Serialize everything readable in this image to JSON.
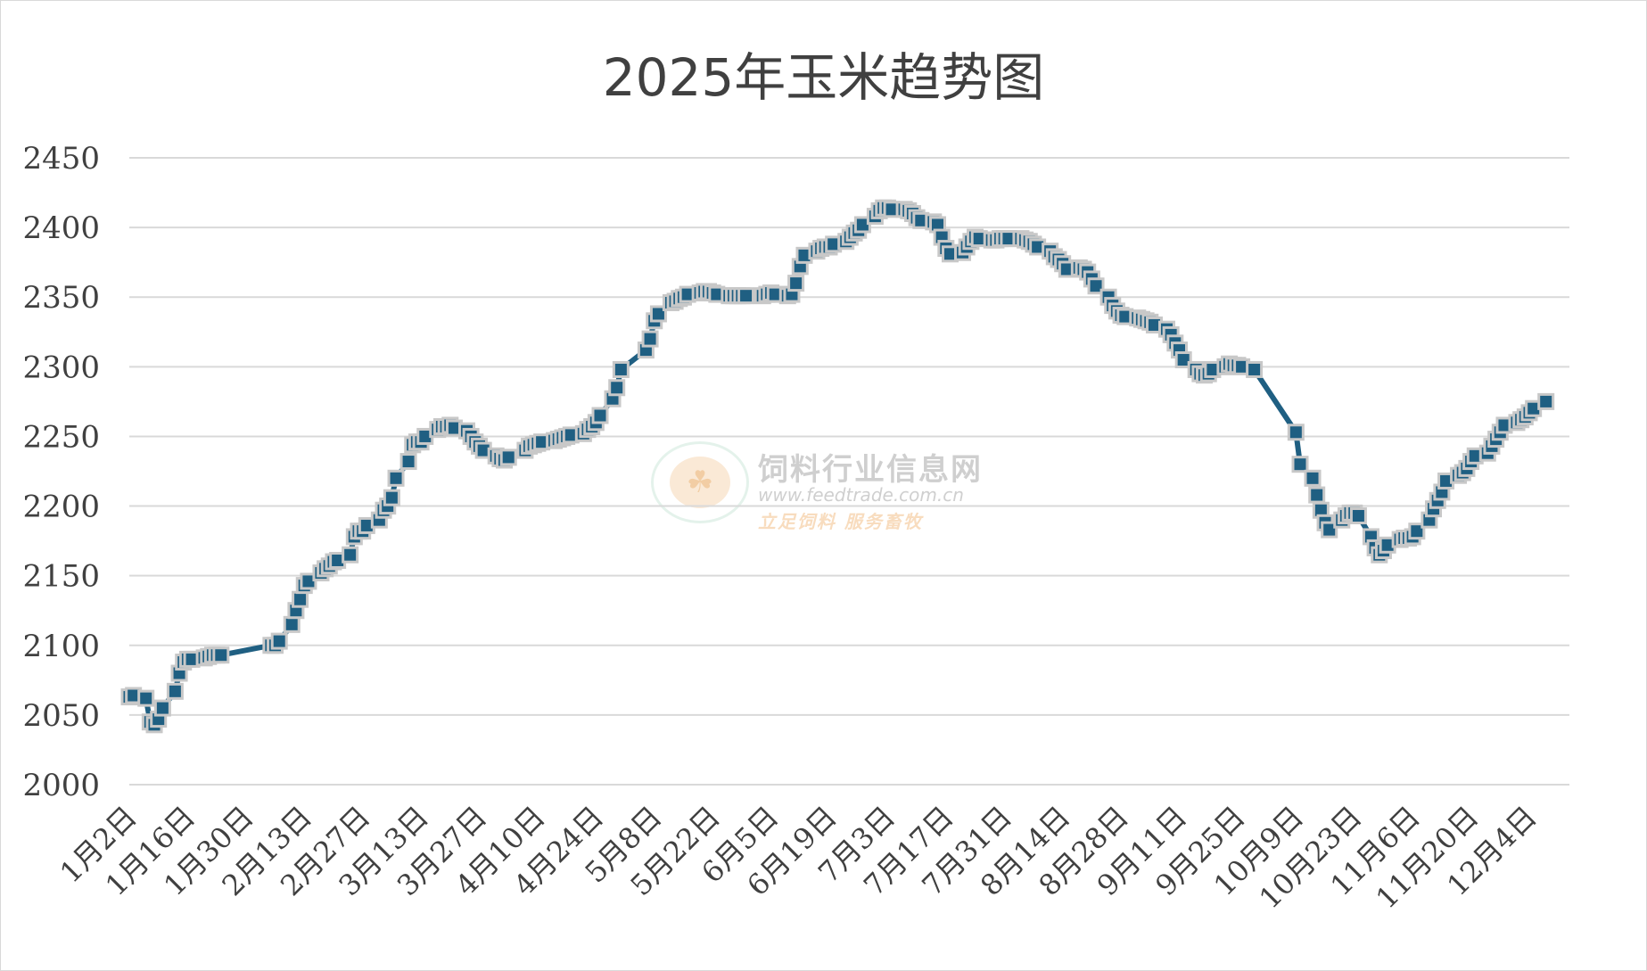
{
  "chart_data": {
    "type": "line",
    "title": "2025年玉米趋势图",
    "xlabel": "",
    "ylabel": "",
    "ylim": [
      2000,
      2450
    ],
    "y_ticks": [
      2000,
      2050,
      2100,
      2150,
      2200,
      2250,
      2300,
      2350,
      2400,
      2450
    ],
    "grid": true,
    "legend": "none",
    "marker": "square",
    "colors": {
      "line": "#1f5f82",
      "marker": "#1f5f82",
      "marker_edge": "#c8c8c8",
      "grid": "#d9d9d9",
      "tick_text": "#404040"
    },
    "x_tick_labels": [
      "1月2日",
      "1月16日",
      "1月30日",
      "2月13日",
      "2月27日",
      "3月13日",
      "3月27日",
      "4月10日",
      "4月24日",
      "5月8日",
      "5月22日",
      "6月5日",
      "6月19日",
      "7月3日",
      "7月17日",
      "7月31日",
      "8月14日",
      "8月28日",
      "9月11日",
      "9月25日",
      "10月9日",
      "10月23日",
      "11月6日",
      "11月20日",
      "12月4日"
    ],
    "series": [
      {
        "values": [
          {
            "x": "1月2日",
            "y": 2063
          },
          {
            "x": "1月3日",
            "y": 2064
          },
          {
            "x": "1月6日",
            "y": 2062
          },
          {
            "x": "1月7日",
            "y": 2045
          },
          {
            "x": "1月8日",
            "y": 2043
          },
          {
            "x": "1月9日",
            "y": 2047
          },
          {
            "x": "1月10日",
            "y": 2055
          },
          {
            "x": "1月13日",
            "y": 2067
          },
          {
            "x": "1月14日",
            "y": 2080
          },
          {
            "x": "1月15日",
            "y": 2088
          },
          {
            "x": "1月16日",
            "y": 2090
          },
          {
            "x": "1月17日",
            "y": 2090
          },
          {
            "x": "1月20日",
            "y": 2091
          },
          {
            "x": "1月21日",
            "y": 2092
          },
          {
            "x": "1月22日",
            "y": 2093
          },
          {
            "x": "1月23日",
            "y": 2093
          },
          {
            "x": "1月24日",
            "y": 2093
          },
          {
            "x": "2月5日",
            "y": 2100
          },
          {
            "x": "2月6日",
            "y": 2100
          },
          {
            "x": "2月7日",
            "y": 2103
          },
          {
            "x": "2月10日",
            "y": 2115
          },
          {
            "x": "2月11日",
            "y": 2125
          },
          {
            "x": "2月12日",
            "y": 2133
          },
          {
            "x": "2月13日",
            "y": 2143
          },
          {
            "x": "2月14日",
            "y": 2146
          },
          {
            "x": "2月17日",
            "y": 2152
          },
          {
            "x": "2月18日",
            "y": 2155
          },
          {
            "x": "2月19日",
            "y": 2157
          },
          {
            "x": "2月20日",
            "y": 2160
          },
          {
            "x": "2月21日",
            "y": 2161
          },
          {
            "x": "2月24日",
            "y": 2165
          },
          {
            "x": "2月25日",
            "y": 2178
          },
          {
            "x": "2月26日",
            "y": 2182
          },
          {
            "x": "2月27日",
            "y": 2182
          },
          {
            "x": "2月28日",
            "y": 2186
          },
          {
            "x": "3月3日",
            "y": 2190
          },
          {
            "x": "3月4日",
            "y": 2197
          },
          {
            "x": "3月5日",
            "y": 2200
          },
          {
            "x": "3月6日",
            "y": 2206
          },
          {
            "x": "3月7日",
            "y": 2220
          },
          {
            "x": "3月10日",
            "y": 2232
          },
          {
            "x": "3月11日",
            "y": 2244
          },
          {
            "x": "3月12日",
            "y": 2246
          },
          {
            "x": "3月13日",
            "y": 2246
          },
          {
            "x": "3月14日",
            "y": 2250
          },
          {
            "x": "3月17日",
            "y": 2255
          },
          {
            "x": "3月18日",
            "y": 2257
          },
          {
            "x": "3月19日",
            "y": 2257
          },
          {
            "x": "3月20日",
            "y": 2258
          },
          {
            "x": "3月21日",
            "y": 2256
          },
          {
            "x": "3月24日",
            "y": 2254
          },
          {
            "x": "3月25日",
            "y": 2250
          },
          {
            "x": "3月26日",
            "y": 2246
          },
          {
            "x": "3月27日",
            "y": 2243
          },
          {
            "x": "3月28日",
            "y": 2240
          },
          {
            "x": "3月31日",
            "y": 2236
          },
          {
            "x": "4月1日",
            "y": 2234
          },
          {
            "x": "4月2日",
            "y": 2233
          },
          {
            "x": "4月3日",
            "y": 2235
          },
          {
            "x": "4月7日",
            "y": 2240
          },
          {
            "x": "4月8日",
            "y": 2243
          },
          {
            "x": "4月9日",
            "y": 2244
          },
          {
            "x": "4月10日",
            "y": 2245
          },
          {
            "x": "4月11日",
            "y": 2246
          },
          {
            "x": "4月14日",
            "y": 2247
          },
          {
            "x": "4月15日",
            "y": 2248
          },
          {
            "x": "4月16日",
            "y": 2249
          },
          {
            "x": "4月17日",
            "y": 2250
          },
          {
            "x": "4月18日",
            "y": 2251
          },
          {
            "x": "4月21日",
            "y": 2252
          },
          {
            "x": "4月22日",
            "y": 2255
          },
          {
            "x": "4月23日",
            "y": 2257
          },
          {
            "x": "4月24日",
            "y": 2260
          },
          {
            "x": "4月25日",
            "y": 2265
          },
          {
            "x": "4月28日",
            "y": 2277
          },
          {
            "x": "4月29日",
            "y": 2285
          },
          {
            "x": "4月30日",
            "y": 2298
          },
          {
            "x": "5月6日",
            "y": 2312
          },
          {
            "x": "5月7日",
            "y": 2320
          },
          {
            "x": "5月8日",
            "y": 2333
          },
          {
            "x": "5月9日",
            "y": 2338
          },
          {
            "x": "5月12日",
            "y": 2346
          },
          {
            "x": "5月13日",
            "y": 2347
          },
          {
            "x": "5月14日",
            "y": 2349
          },
          {
            "x": "5月15日",
            "y": 2350
          },
          {
            "x": "5月16日",
            "y": 2352
          },
          {
            "x": "5月19日",
            "y": 2353
          },
          {
            "x": "5月20日",
            "y": 2354
          },
          {
            "x": "5月21日",
            "y": 2354
          },
          {
            "x": "5月22日",
            "y": 2353
          },
          {
            "x": "5月23日",
            "y": 2352
          },
          {
            "x": "5月26日",
            "y": 2351
          },
          {
            "x": "5月27日",
            "y": 2351
          },
          {
            "x": "5月28日",
            "y": 2351
          },
          {
            "x": "5月29日",
            "y": 2351
          },
          {
            "x": "5月30日",
            "y": 2351
          },
          {
            "x": "6月3日",
            "y": 2351
          },
          {
            "x": "6月4日",
            "y": 2352
          },
          {
            "x": "6月5日",
            "y": 2353
          },
          {
            "x": "6月6日",
            "y": 2352
          },
          {
            "x": "6月9日",
            "y": 2351
          },
          {
            "x": "6月10日",
            "y": 2352
          },
          {
            "x": "6月11日",
            "y": 2360
          },
          {
            "x": "6月12日",
            "y": 2372
          },
          {
            "x": "6月13日",
            "y": 2380
          },
          {
            "x": "6月16日",
            "y": 2383
          },
          {
            "x": "6月17日",
            "y": 2385
          },
          {
            "x": "6月18日",
            "y": 2386
          },
          {
            "x": "6月19日",
            "y": 2386
          },
          {
            "x": "6月20日",
            "y": 2388
          },
          {
            "x": "6月23日",
            "y": 2390
          },
          {
            "x": "6月24日",
            "y": 2393
          },
          {
            "x": "6月25日",
            "y": 2396
          },
          {
            "x": "6月26日",
            "y": 2398
          },
          {
            "x": "6月27日",
            "y": 2402
          },
          {
            "x": "6月30日",
            "y": 2408
          },
          {
            "x": "7月1日",
            "y": 2412
          },
          {
            "x": "7月2日",
            "y": 2414
          },
          {
            "x": "7月3日",
            "y": 2414
          },
          {
            "x": "7月4日",
            "y": 2413
          },
          {
            "x": "7月7日",
            "y": 2413
          },
          {
            "x": "7月8日",
            "y": 2412
          },
          {
            "x": "7月9日",
            "y": 2410
          },
          {
            "x": "7月10日",
            "y": 2407
          },
          {
            "x": "7月11日",
            "y": 2405
          },
          {
            "x": "7月14日",
            "y": 2404
          },
          {
            "x": "7月15日",
            "y": 2402
          },
          {
            "x": "7月16日",
            "y": 2393
          },
          {
            "x": "7月17日",
            "y": 2385
          },
          {
            "x": "7月18日",
            "y": 2381
          },
          {
            "x": "7月21日",
            "y": 2382
          },
          {
            "x": "7月22日",
            "y": 2386
          },
          {
            "x": "7月23日",
            "y": 2390
          },
          {
            "x": "7月24日",
            "y": 2393
          },
          {
            "x": "7月25日",
            "y": 2392
          },
          {
            "x": "7月28日",
            "y": 2391
          },
          {
            "x": "7月29日",
            "y": 2391
          },
          {
            "x": "7月30日",
            "y": 2392
          },
          {
            "x": "7月31日",
            "y": 2392
          },
          {
            "x": "8月1日",
            "y": 2392
          },
          {
            "x": "8月4日",
            "y": 2392
          },
          {
            "x": "8月5日",
            "y": 2391
          },
          {
            "x": "8月6日",
            "y": 2390
          },
          {
            "x": "8月7日",
            "y": 2388
          },
          {
            "x": "8月8日",
            "y": 2386
          },
          {
            "x": "8月11日",
            "y": 2383
          },
          {
            "x": "8月12日",
            "y": 2379
          },
          {
            "x": "8月13日",
            "y": 2377
          },
          {
            "x": "8月14日",
            "y": 2374
          },
          {
            "x": "8月15日",
            "y": 2370
          },
          {
            "x": "8月18日",
            "y": 2371
          },
          {
            "x": "8月19日",
            "y": 2370
          },
          {
            "x": "8月20日",
            "y": 2368
          },
          {
            "x": "8月21日",
            "y": 2363
          },
          {
            "x": "8月22日",
            "y": 2358
          },
          {
            "x": "8月25日",
            "y": 2350
          },
          {
            "x": "8月26日",
            "y": 2344
          },
          {
            "x": "8月27日",
            "y": 2340
          },
          {
            "x": "8月28日",
            "y": 2337
          },
          {
            "x": "8月29日",
            "y": 2336
          },
          {
            "x": "9月1日",
            "y": 2335
          },
          {
            "x": "9月2日",
            "y": 2334
          },
          {
            "x": "9月3日",
            "y": 2333
          },
          {
            "x": "9月4日",
            "y": 2332
          },
          {
            "x": "9月5日",
            "y": 2330
          },
          {
            "x": "9月8日",
            "y": 2327
          },
          {
            "x": "9月9日",
            "y": 2323
          },
          {
            "x": "9月10日",
            "y": 2317
          },
          {
            "x": "9月11日",
            "y": 2312
          },
          {
            "x": "9月12日",
            "y": 2305
          },
          {
            "x": "9月15日",
            "y": 2298
          },
          {
            "x": "9月16日",
            "y": 2295
          },
          {
            "x": "9月17日",
            "y": 2294
          },
          {
            "x": "9月18日",
            "y": 2295
          },
          {
            "x": "9月19日",
            "y": 2298
          },
          {
            "x": "9月22日",
            "y": 2300
          },
          {
            "x": "9月23日",
            "y": 2302
          },
          {
            "x": "9月24日",
            "y": 2301
          },
          {
            "x": "9月25日",
            "y": 2301
          },
          {
            "x": "9月26日",
            "y": 2300
          },
          {
            "x": "9月29日",
            "y": 2298
          },
          {
            "x": "10月9日",
            "y": 2253
          },
          {
            "x": "10月10日",
            "y": 2230
          },
          {
            "x": "10月13日",
            "y": 2220
          },
          {
            "x": "10月14日",
            "y": 2208
          },
          {
            "x": "10月15日",
            "y": 2197
          },
          {
            "x": "10月16日",
            "y": 2188
          },
          {
            "x": "10月17日",
            "y": 2183
          },
          {
            "x": "10月20日",
            "y": 2190
          },
          {
            "x": "10月21日",
            "y": 2193
          },
          {
            "x": "10月22日",
            "y": 2195
          },
          {
            "x": "10月23日",
            "y": 2195
          },
          {
            "x": "10月24日",
            "y": 2193
          },
          {
            "x": "10月27日",
            "y": 2178
          },
          {
            "x": "10月28日",
            "y": 2170
          },
          {
            "x": "10月29日",
            "y": 2165
          },
          {
            "x": "10月30日",
            "y": 2168
          },
          {
            "x": "10月31日",
            "y": 2172
          },
          {
            "x": "11月3日",
            "y": 2176
          },
          {
            "x": "11月4日",
            "y": 2177
          },
          {
            "x": "11月5日",
            "y": 2177
          },
          {
            "x": "11月6日",
            "y": 2178
          },
          {
            "x": "11月7日",
            "y": 2182
          },
          {
            "x": "11月10日",
            "y": 2190
          },
          {
            "x": "11月11日",
            "y": 2198
          },
          {
            "x": "11月12日",
            "y": 2204
          },
          {
            "x": "11月13日",
            "y": 2210
          },
          {
            "x": "11月14日",
            "y": 2218
          },
          {
            "x": "11月17日",
            "y": 2222
          },
          {
            "x": "11月18日",
            "y": 2224
          },
          {
            "x": "11月19日",
            "y": 2227
          },
          {
            "x": "11月20日",
            "y": 2232
          },
          {
            "x": "11月21日",
            "y": 2236
          },
          {
            "x": "11月24日",
            "y": 2238
          },
          {
            "x": "11月25日",
            "y": 2243
          },
          {
            "x": "11月26日",
            "y": 2248
          },
          {
            "x": "11月27日",
            "y": 2253
          },
          {
            "x": "11月28日",
            "y": 2258
          },
          {
            "x": "12月1日",
            "y": 2260
          },
          {
            "x": "12月2日",
            "y": 2262
          },
          {
            "x": "12月3日",
            "y": 2264
          },
          {
            "x": "12月4日",
            "y": 2267
          },
          {
            "x": "12月5日",
            "y": 2270
          },
          {
            "x": "12月8日",
            "y": 2275
          }
        ]
      }
    ]
  },
  "watermark": {
    "name": "饲料行业信息网",
    "url": "www.feedtrade.com.cn",
    "slogan": "立足饲料  服务畜牧"
  }
}
